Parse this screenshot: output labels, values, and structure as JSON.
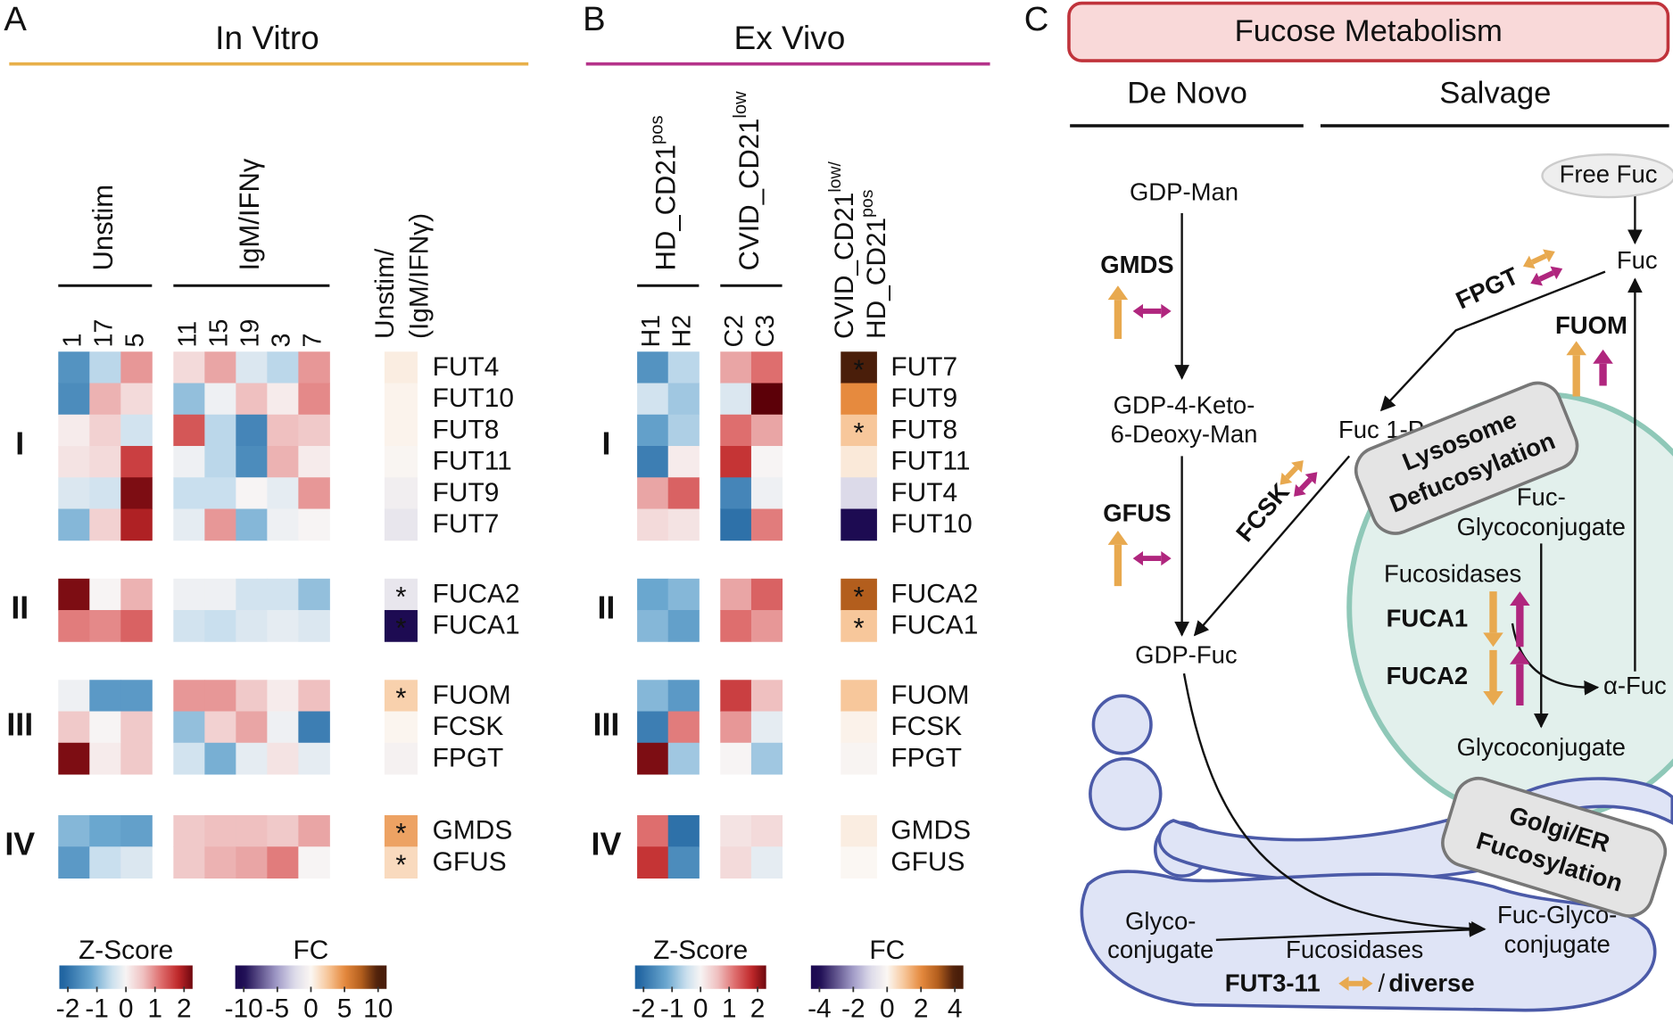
{
  "panel_a": {
    "letter": "A",
    "title": "In Vitro",
    "group_labels": [
      "Unstim",
      "IgM/IFNγ"
    ],
    "fc_label": [
      "Unstim/",
      "(IgM/IFNγ)"
    ],
    "columns": [
      [
        "1",
        "17",
        "5"
      ],
      [
        "11",
        "15",
        "19",
        "3",
        "7"
      ]
    ],
    "row_groups": [
      "I",
      "II",
      "III",
      "IV"
    ],
    "genes": [
      [
        "FUT4",
        "FUT10",
        "FUT8",
        "FUT11",
        "FUT9",
        "FUT7"
      ],
      [
        "FUCA2",
        "FUCA1"
      ],
      [
        "FUOM",
        "FCSK",
        "FPGT"
      ],
      [
        "GMDS",
        "GFUS"
      ]
    ],
    "zscores": [
      [
        [
          -1.5,
          -0.6,
          0.9,
          0.3,
          0.8,
          -0.3,
          -0.6,
          0.9
        ],
        [
          -1.6,
          0.7,
          0.3,
          -0.9,
          -0.1,
          0.6,
          0.1,
          1.0
        ],
        [
          0.1,
          0.4,
          -0.4,
          1.4,
          -0.6,
          -1.7,
          0.6,
          0.5
        ],
        [
          0.2,
          0.3,
          1.6,
          -0.1,
          -0.6,
          -1.6,
          0.7,
          0.1
        ],
        [
          -0.3,
          -0.4,
          2.2,
          -0.5,
          -0.5,
          0.0,
          -0.2,
          0.9
        ],
        [
          -1.0,
          0.4,
          1.9,
          -0.2,
          0.9,
          -1.0,
          -0.1,
          0.0
        ]
      ],
      [
        [
          2.2,
          0.0,
          0.7,
          -0.1,
          -0.1,
          -0.4,
          -0.4,
          -0.9
        ],
        [
          1.1,
          1.0,
          1.3,
          -0.4,
          -0.5,
          -0.3,
          -0.2,
          -0.3
        ]
      ],
      [
        [
          -0.1,
          -1.4,
          -1.4,
          0.9,
          0.9,
          0.5,
          0.1,
          0.6
        ],
        [
          0.5,
          0.0,
          0.5,
          -0.9,
          0.4,
          0.8,
          -0.1,
          -1.8
        ],
        [
          2.2,
          0.1,
          0.5,
          -0.4,
          -1.1,
          -0.2,
          0.2,
          -0.2
        ]
      ],
      [
        [
          -1.0,
          -1.2,
          -1.3,
          0.5,
          0.6,
          0.6,
          0.5,
          0.8
        ],
        [
          -1.4,
          -0.5,
          -0.3,
          0.5,
          0.7,
          0.8,
          1.1,
          0.0
        ]
      ]
    ],
    "fc": [
      [
        0.5,
        0.2,
        0.2,
        -0.2,
        -0.8,
        -1.5
      ],
      [
        -1.5,
        -10
      ],
      [
        2,
        0.1,
        -0.5
      ],
      [
        4,
        1.5
      ]
    ],
    "stars": [
      [
        null,
        null,
        null,
        null,
        null,
        null
      ],
      [
        "*",
        "*"
      ],
      [
        "*",
        null,
        null
      ],
      [
        "*",
        "*"
      ]
    ],
    "zscore_legend": {
      "title": "Z-Score",
      "ticks": [
        -2,
        -1,
        0,
        1,
        2
      ]
    },
    "fc_legend": {
      "title": "FC",
      "ticks": [
        -10,
        -5,
        0,
        5,
        10
      ]
    }
  },
  "panel_b": {
    "letter": "B",
    "title": "Ex Vivo",
    "group_labels": [
      {
        "text": "HD_CD21",
        "sup": "pos"
      },
      {
        "text": "CVID_CD21",
        "sup": "low"
      }
    ],
    "fc_label": [
      {
        "text": "CVID_CD21",
        "sup": "low/"
      },
      {
        "text": "HD_CD21",
        "sup": "pos"
      }
    ],
    "columns": [
      [
        "H1",
        "H2"
      ],
      [
        "C2",
        "C3"
      ]
    ],
    "row_groups": [
      "I",
      "II",
      "III",
      "IV"
    ],
    "genes": [
      [
        "FUT7",
        "FUT9",
        "FUT8",
        "FUT11",
        "FUT4",
        "FUT10"
      ],
      [
        "FUCA2",
        "FUCA1"
      ],
      [
        "FUOM",
        "FCSK",
        "FPGT"
      ],
      [
        "GMDS",
        "GFUS"
      ]
    ],
    "zscores": [
      [
        [
          -1.5,
          -0.6,
          0.8,
          1.2
        ],
        [
          -0.4,
          -0.8,
          -0.3,
          2.5
        ],
        [
          -1.3,
          -0.7,
          1.2,
          0.8
        ],
        [
          -1.8,
          0.1,
          1.7,
          0.0
        ],
        [
          0.8,
          1.3,
          -1.7,
          -0.1
        ],
        [
          0.3,
          0.2,
          -2.0,
          1.1
        ]
      ],
      [
        [
          -1.2,
          -1.0,
          0.8,
          1.3
        ],
        [
          -1.0,
          -1.3,
          1.2,
          0.9
        ]
      ],
      [
        [
          -1.0,
          -1.4,
          1.6,
          0.6
        ],
        [
          -1.8,
          1.1,
          0.9,
          -0.2
        ],
        [
          2.2,
          -0.8,
          0.0,
          -0.8
        ]
      ],
      [
        [
          1.2,
          -2.0,
          0.2,
          0.3
        ],
        [
          1.7,
          -1.6,
          0.3,
          -0.2
        ]
      ]
    ],
    "fc": [
      [
        4,
        2,
        1,
        0.3,
        -1,
        -4
      ],
      [
        3,
        1
      ],
      [
        1,
        0.1,
        -0.1
      ],
      [
        0.2,
        0
      ]
    ],
    "stars": [
      [
        "*",
        null,
        "*",
        null,
        null,
        null
      ],
      [
        "*",
        "*"
      ],
      [
        null,
        null,
        null
      ],
      [
        null,
        null
      ]
    ],
    "zscore_legend": {
      "title": "Z-Score",
      "ticks": [
        -2,
        -1,
        0,
        1,
        2
      ]
    },
    "fc_legend": {
      "title": "FC",
      "ticks": [
        -4,
        -2,
        0,
        2,
        4
      ]
    }
  },
  "panel_c": {
    "letter": "C",
    "title": "Fucose Metabolism",
    "de_novo": "De Novo",
    "salvage": "Salvage",
    "gdp_man": "GDP-Man",
    "gmds": "GMDS",
    "keto": [
      "GDP-4-Keto-",
      "6-Deoxy-Man"
    ],
    "gfus": "GFUS",
    "gdp_fuc": "GDP-Fuc",
    "free_fuc": "Free Fuc",
    "fuc": "Fuc",
    "fpgt": "FPGT",
    "fuom": "FUOM",
    "fuc1p": "Fuc 1-P",
    "fcsk": "FCSK",
    "lysosome": [
      "Lysosome",
      "Defucosylation"
    ],
    "fuc_glyco": [
      "Fuc-",
      "Glycoconjugate"
    ],
    "fucosidases": "Fucosidases",
    "fuca1": "FUCA1",
    "fuca2": "FUCA2",
    "alpha_fuc": "α-Fuc",
    "glycoconjugate": "Glycoconjugate",
    "golgi": [
      "Golgi/ER",
      "Fucosylation"
    ],
    "glyco": [
      "Glyco-",
      "conjugate"
    ],
    "golgi_fucosidases": "Fucosidases",
    "fuc_glyco2": [
      "Fuc-Glyco-",
      "conjugate"
    ],
    "fut": "FUT3-11",
    "separator": "/",
    "diverse": "diverse"
  }
}
